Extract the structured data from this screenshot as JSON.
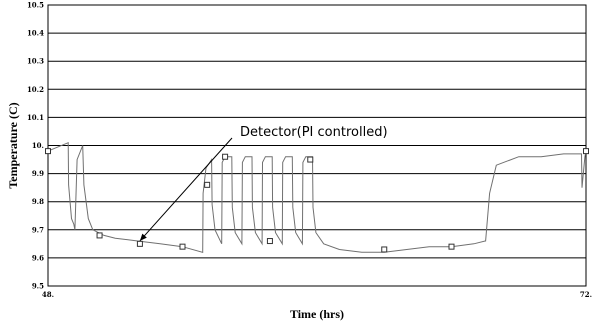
{
  "chart_data": {
    "type": "line",
    "xlabel": "Time (hrs)",
    "ylabel": "Temperature (C)",
    "xlim": [
      48,
      72
    ],
    "ylim": [
      9.5,
      10.5
    ],
    "x_tick_labels": [
      "48.",
      "72."
    ],
    "y_ticks": [
      "9.5",
      "9.6",
      "9.7",
      "9.8",
      "9.9",
      "10.",
      "10.1",
      "10.2",
      "10.3",
      "10.4",
      "10.5"
    ],
    "grid": true,
    "line_color": "#707070",
    "series": [
      {
        "x": [
          48.0,
          48.9,
          48.92,
          49.05,
          49.15,
          49.2,
          49.3,
          49.55,
          49.6,
          49.8,
          50.0,
          50.5,
          51.0,
          52.0,
          53.0,
          54.0,
          54.9,
          54.92,
          55.05,
          55.3,
          55.32,
          55.45,
          55.75,
          55.77,
          55.9,
          56.2,
          56.22,
          56.35,
          56.65,
          56.67,
          56.8,
          57.1,
          57.12,
          57.25,
          57.55,
          57.57,
          57.7,
          58.0,
          58.02,
          58.15,
          58.45,
          58.47,
          58.6,
          58.9,
          58.92,
          59.05,
          59.35,
          59.37,
          59.5,
          59.8,
          59.82,
          59.95,
          60.3,
          61.0,
          62.0,
          63.0,
          64.0,
          65.0,
          66.0,
          67.0,
          67.5,
          67.52,
          67.7,
          68.0,
          69.0,
          70.0,
          71.0,
          71.8,
          71.82,
          71.95,
          72.0
        ],
        "y": [
          9.98,
          10.01,
          9.86,
          9.74,
          9.72,
          9.7,
          9.95,
          10.0,
          9.86,
          9.74,
          9.7,
          9.68,
          9.67,
          9.66,
          9.65,
          9.64,
          9.62,
          9.83,
          9.92,
          9.95,
          9.79,
          9.7,
          9.65,
          9.94,
          9.96,
          9.96,
          9.78,
          9.69,
          9.65,
          9.94,
          9.96,
          9.96,
          9.78,
          9.69,
          9.65,
          9.94,
          9.96,
          9.96,
          9.78,
          9.69,
          9.65,
          9.94,
          9.96,
          9.96,
          9.78,
          9.69,
          9.65,
          9.94,
          9.96,
          9.96,
          9.78,
          9.69,
          9.65,
          9.63,
          9.62,
          9.62,
          9.63,
          9.64,
          9.64,
          9.65,
          9.66,
          9.66,
          9.83,
          9.93,
          9.96,
          9.96,
          9.97,
          9.97,
          9.85,
          9.96,
          9.98
        ]
      }
    ],
    "markers": {
      "x": [
        48.0,
        50.3,
        52.1,
        54.0,
        55.1,
        55.9,
        57.9,
        59.7,
        63.0,
        66.0,
        72.0
      ],
      "y": [
        9.98,
        9.68,
        9.65,
        9.64,
        9.86,
        9.96,
        9.66,
        9.95,
        9.63,
        9.64,
        9.98
      ]
    },
    "annotation": {
      "text": "Detector(PI controlled)",
      "x": 52.1,
      "y": 9.65
    }
  }
}
